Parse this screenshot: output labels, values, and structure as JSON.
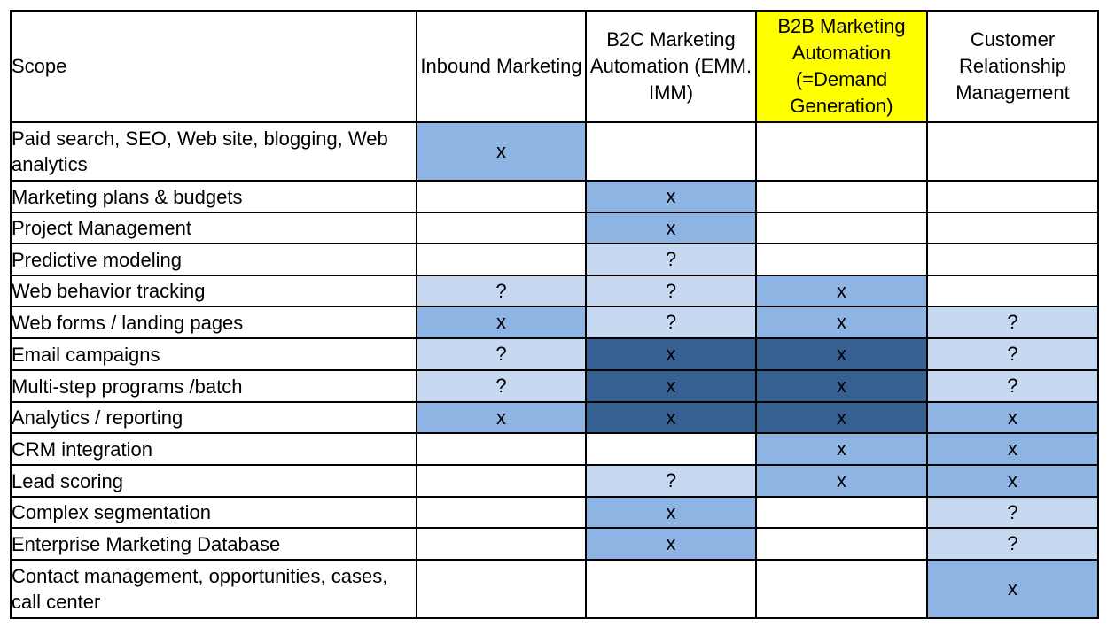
{
  "columns": [
    {
      "label": "Scope"
    },
    {
      "label": "Inbound Marketing"
    },
    {
      "label": "B2C Marketing Automation (EMM. IMM)"
    },
    {
      "label": "B2B Marketing Automation (=Demand Generation)",
      "highlight": "#ffff00"
    },
    {
      "label": "Customer Relationship Management"
    }
  ],
  "legend_colors": {
    "none": "#ffffff",
    "light": "#c6d9f1",
    "medium": "#8eb4e3",
    "dark": "#366092"
  },
  "rows": [
    {
      "label": "Paid search, SEO, Web site, blogging, Web analytics",
      "cells": [
        {
          "mark": "x",
          "level": 2
        },
        {
          "mark": "",
          "level": 0
        },
        {
          "mark": "",
          "level": 0
        },
        {
          "mark": "",
          "level": 0
        }
      ]
    },
    {
      "label": "Marketing plans & budgets",
      "cells": [
        {
          "mark": "",
          "level": 0
        },
        {
          "mark": "x",
          "level": 2
        },
        {
          "mark": "",
          "level": 0
        },
        {
          "mark": "",
          "level": 0
        }
      ]
    },
    {
      "label": "Project Management",
      "cells": [
        {
          "mark": "",
          "level": 0
        },
        {
          "mark": "x",
          "level": 2
        },
        {
          "mark": "",
          "level": 0
        },
        {
          "mark": "",
          "level": 0
        }
      ]
    },
    {
      "label": "Predictive modeling",
      "cells": [
        {
          "mark": "",
          "level": 0
        },
        {
          "mark": "?",
          "level": 1
        },
        {
          "mark": "",
          "level": 0
        },
        {
          "mark": "",
          "level": 0
        }
      ]
    },
    {
      "label": "Web behavior tracking",
      "cells": [
        {
          "mark": "?",
          "level": 1
        },
        {
          "mark": "?",
          "level": 1
        },
        {
          "mark": "x",
          "level": 2
        },
        {
          "mark": "",
          "level": 0
        }
      ]
    },
    {
      "label": "Web forms / landing pages",
      "cells": [
        {
          "mark": "x",
          "level": 2
        },
        {
          "mark": "?",
          "level": 1
        },
        {
          "mark": "x",
          "level": 2
        },
        {
          "mark": "?",
          "level": 1
        }
      ]
    },
    {
      "label": "Email campaigns",
      "cells": [
        {
          "mark": "?",
          "level": 1
        },
        {
          "mark": "x",
          "level": 3
        },
        {
          "mark": "x",
          "level": 3
        },
        {
          "mark": "?",
          "level": 1
        }
      ]
    },
    {
      "label": "Multi-step programs /batch",
      "cells": [
        {
          "mark": "?",
          "level": 1
        },
        {
          "mark": "x",
          "level": 3
        },
        {
          "mark": "x",
          "level": 3
        },
        {
          "mark": "?",
          "level": 1
        }
      ]
    },
    {
      "label": "Analytics / reporting",
      "cells": [
        {
          "mark": "x",
          "level": 2
        },
        {
          "mark": "x",
          "level": 3
        },
        {
          "mark": "x",
          "level": 3
        },
        {
          "mark": "x",
          "level": 2
        }
      ]
    },
    {
      "label": "CRM integration",
      "cells": [
        {
          "mark": "",
          "level": 0
        },
        {
          "mark": "",
          "level": 0
        },
        {
          "mark": "x",
          "level": 2
        },
        {
          "mark": "x",
          "level": 2
        }
      ]
    },
    {
      "label": "Lead scoring",
      "cells": [
        {
          "mark": "",
          "level": 0
        },
        {
          "mark": "?",
          "level": 1
        },
        {
          "mark": "x",
          "level": 2
        },
        {
          "mark": "x",
          "level": 2
        }
      ]
    },
    {
      "label": "Complex segmentation",
      "cells": [
        {
          "mark": "",
          "level": 0
        },
        {
          "mark": "x",
          "level": 2
        },
        {
          "mark": "",
          "level": 0
        },
        {
          "mark": "?",
          "level": 1
        }
      ]
    },
    {
      "label": "Enterprise Marketing Database",
      "cells": [
        {
          "mark": "",
          "level": 0
        },
        {
          "mark": "x",
          "level": 2
        },
        {
          "mark": "",
          "level": 0
        },
        {
          "mark": "?",
          "level": 1
        }
      ]
    },
    {
      "label": "Contact management, opportunities, cases, call center",
      "cells": [
        {
          "mark": "",
          "level": 0
        },
        {
          "mark": "",
          "level": 0
        },
        {
          "mark": "",
          "level": 0
        },
        {
          "mark": "x",
          "level": 2
        }
      ]
    }
  ]
}
